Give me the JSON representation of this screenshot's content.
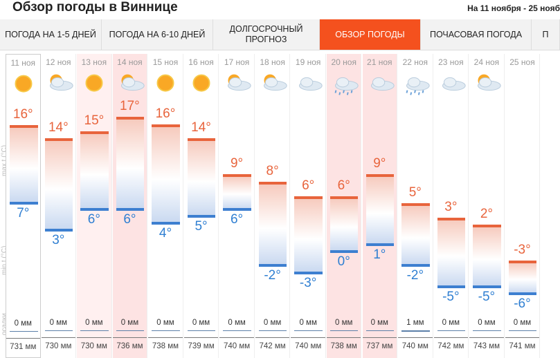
{
  "header": {
    "title": "Обзор погоды в Виннице",
    "range": "На 11 ноября - 25 нояб"
  },
  "tabs": [
    "ПОГОДА НА 1-5 ДНЕЙ",
    "ПОГОДА НА 6-10 ДНЕЙ",
    "ДОЛГОСРОЧНЫЙ ПРОГНОЗ",
    "ОБЗОР ПОГОДЫ",
    "ПОЧАСОВАЯ ПОГОДА",
    "П"
  ],
  "active_tab": 3,
  "axis_labels": {
    "max": "max t (°C)",
    "min": "min t (°C)",
    "precip": "осадки"
  },
  "days": [
    {
      "date": "11 ноя",
      "max": 16,
      "max_label": "16°",
      "min": 7,
      "min_label": "7°",
      "precip": "0 мм",
      "pressure": "731 мм"
    },
    {
      "date": "12 ноя",
      "max": 14,
      "max_label": "14°",
      "min": 3,
      "min_label": "3°",
      "precip": "0 мм",
      "pressure": "730 мм"
    },
    {
      "date": "13 ноя",
      "max": 15,
      "max_label": "15°",
      "min": 6,
      "min_label": "6°",
      "precip": "0 мм",
      "pressure": "730 мм"
    },
    {
      "date": "14 ноя",
      "max": 17,
      "max_label": "17°",
      "min": 6,
      "min_label": "6°",
      "precip": "0 мм",
      "pressure": "736 мм"
    },
    {
      "date": "15 ноя",
      "max": 16,
      "max_label": "16°",
      "min": 4,
      "min_label": "4°",
      "precip": "0 мм",
      "pressure": "738 мм"
    },
    {
      "date": "16 ноя",
      "max": 14,
      "max_label": "14°",
      "min": 5,
      "min_label": "5°",
      "precip": "0 мм",
      "pressure": "739 мм"
    },
    {
      "date": "17 ноя",
      "max": 9,
      "max_label": "9°",
      "min": 6,
      "min_label": "6°",
      "precip": "0 мм",
      "pressure": "740 мм"
    },
    {
      "date": "18 ноя",
      "max": 8,
      "max_label": "8°",
      "min": -2,
      "min_label": "-2°",
      "precip": "0 мм",
      "pressure": "742 мм"
    },
    {
      "date": "19 ноя",
      "max": 6,
      "max_label": "6°",
      "min": -3,
      "min_label": "-3°",
      "precip": "0 мм",
      "pressure": "740 мм"
    },
    {
      "date": "20 ноя",
      "max": 6,
      "max_label": "6°",
      "min": 0,
      "min_label": "0°",
      "precip": "0 мм",
      "pressure": "738 мм"
    },
    {
      "date": "21 ноя",
      "max": 9,
      "max_label": "9°",
      "min": 1,
      "min_label": "1°",
      "precip": "0 мм",
      "pressure": "737 мм"
    },
    {
      "date": "22 ноя",
      "max": 5,
      "max_label": "5°",
      "min": -2,
      "min_label": "-2°",
      "precip": "1 мм",
      "pressure": "740 мм"
    },
    {
      "date": "23 ноя",
      "max": 3,
      "max_label": "3°",
      "min": -5,
      "min_label": "-5°",
      "precip": "0 мм",
      "pressure": "742 мм"
    },
    {
      "date": "24 ноя",
      "max": 2,
      "max_label": "2°",
      "min": -5,
      "min_label": "-5°",
      "precip": "0 мм",
      "pressure": "743 мм"
    },
    {
      "date": "25 ноя",
      "max": -3,
      "max_label": "-3°",
      "min": -6,
      "min_label": "-6°",
      "precip": "0 мм",
      "pressure": "741 мм"
    }
  ]
}
